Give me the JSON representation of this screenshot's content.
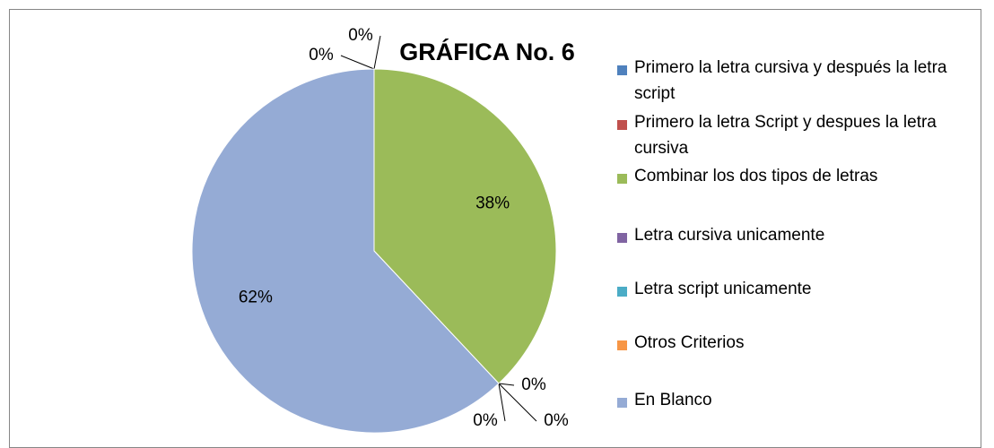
{
  "chart_data": {
    "type": "pie",
    "title": "GRÁFICA No. 6",
    "categories": [
      "Primero la letra cursiva y después la letra script",
      "Primero la letra Script y despues la letra cursiva",
      "Combinar los dos tipos de letras",
      "Letra cursiva unicamente",
      "Letra script unicamente",
      "Otros Criterios",
      "En Blanco"
    ],
    "values": [
      0,
      0,
      38,
      0,
      0,
      0,
      62
    ],
    "value_labels": [
      "0%",
      "0%",
      "38%",
      "0%",
      "0%",
      "0%",
      "62%"
    ],
    "colors": [
      "#4f81bd",
      "#c0504d",
      "#9bbb59",
      "#8064a2",
      "#4bacc6",
      "#f79646",
      "#95abd5"
    ],
    "legend": "right"
  }
}
